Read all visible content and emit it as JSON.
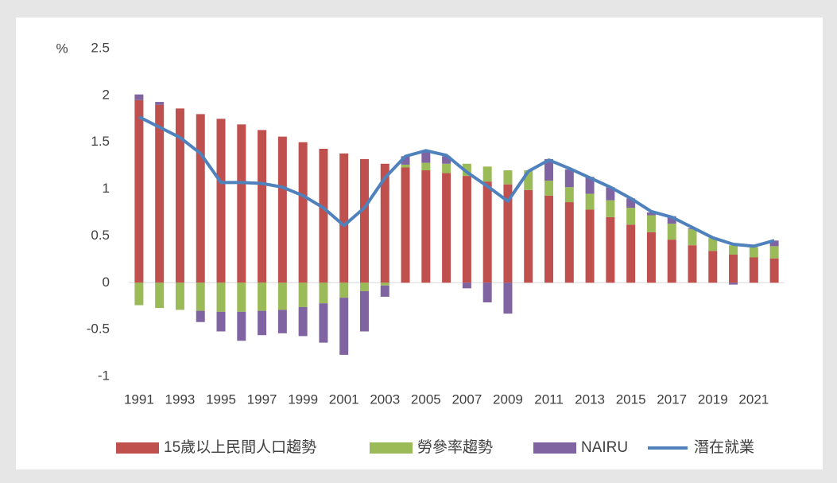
{
  "chart_data": {
    "type": "bar",
    "stacked": true,
    "y_label": "%",
    "categories": [
      "1991",
      null,
      "1993",
      null,
      "1995",
      null,
      "1997",
      null,
      "1999",
      null,
      "2001",
      null,
      "2003",
      null,
      "2005",
      null,
      "2007",
      null,
      "2009",
      null,
      "2011",
      null,
      "2013",
      null,
      "2015",
      null,
      "2017",
      null,
      "2019",
      null,
      "2021",
      null
    ],
    "series": [
      {
        "name": "15歲以上民間人口趨勢",
        "type": "bar",
        "color": "#c0504d",
        "values": [
          1.95,
          1.9,
          1.86,
          1.8,
          1.75,
          1.69,
          1.63,
          1.56,
          1.5,
          1.43,
          1.38,
          1.32,
          1.27,
          1.23,
          1.2,
          1.17,
          1.14,
          1.08,
          1.05,
          0.99,
          0.93,
          0.86,
          0.78,
          0.7,
          0.62,
          0.54,
          0.46,
          0.4,
          0.34,
          0.3,
          0.27,
          0.26
        ]
      },
      {
        "name": "勞參率趨勢",
        "type": "bar",
        "color": "#9bbb59",
        "values": [
          -0.24,
          -0.27,
          -0.29,
          -0.3,
          -0.31,
          -0.31,
          -0.3,
          -0.29,
          -0.26,
          -0.22,
          -0.16,
          -0.09,
          -0.03,
          0.03,
          0.08,
          0.1,
          0.13,
          0.16,
          0.15,
          0.21,
          0.16,
          0.16,
          0.17,
          0.18,
          0.18,
          0.18,
          0.17,
          0.17,
          0.14,
          0.1,
          0.11,
          0.13
        ]
      },
      {
        "name": "NAIRU",
        "type": "bar",
        "color": "#8064a2",
        "values": [
          0.06,
          0.03,
          0,
          -0.12,
          -0.21,
          -0.31,
          -0.26,
          -0.25,
          -0.31,
          -0.42,
          -0.61,
          -0.43,
          -0.12,
          0.09,
          0.12,
          0.08,
          -0.06,
          -0.21,
          -0.33,
          0,
          0.23,
          0.19,
          0.18,
          0.14,
          0.1,
          0.03,
          0.08,
          0.01,
          0,
          -0.02,
          0,
          0.06
        ]
      },
      {
        "name": "潛在就業",
        "type": "line",
        "color": "#4f81bd",
        "values": [
          1.77,
          1.66,
          1.55,
          1.38,
          1.07,
          1.07,
          1.06,
          1.02,
          0.93,
          0.8,
          0.61,
          0.8,
          1.12,
          1.35,
          1.41,
          1.36,
          1.18,
          1.03,
          0.87,
          1.19,
          1.31,
          1.22,
          1.12,
          1.02,
          0.9,
          0.76,
          0.7,
          0.59,
          0.48,
          0.41,
          0.39,
          0.45
        ]
      }
    ],
    "ylim": [
      -1,
      2.5
    ],
    "yticks": [
      -1,
      -0.5,
      0,
      0.5,
      1,
      1.5,
      2,
      2.5
    ],
    "grid": false,
    "legend": "bottom"
  }
}
